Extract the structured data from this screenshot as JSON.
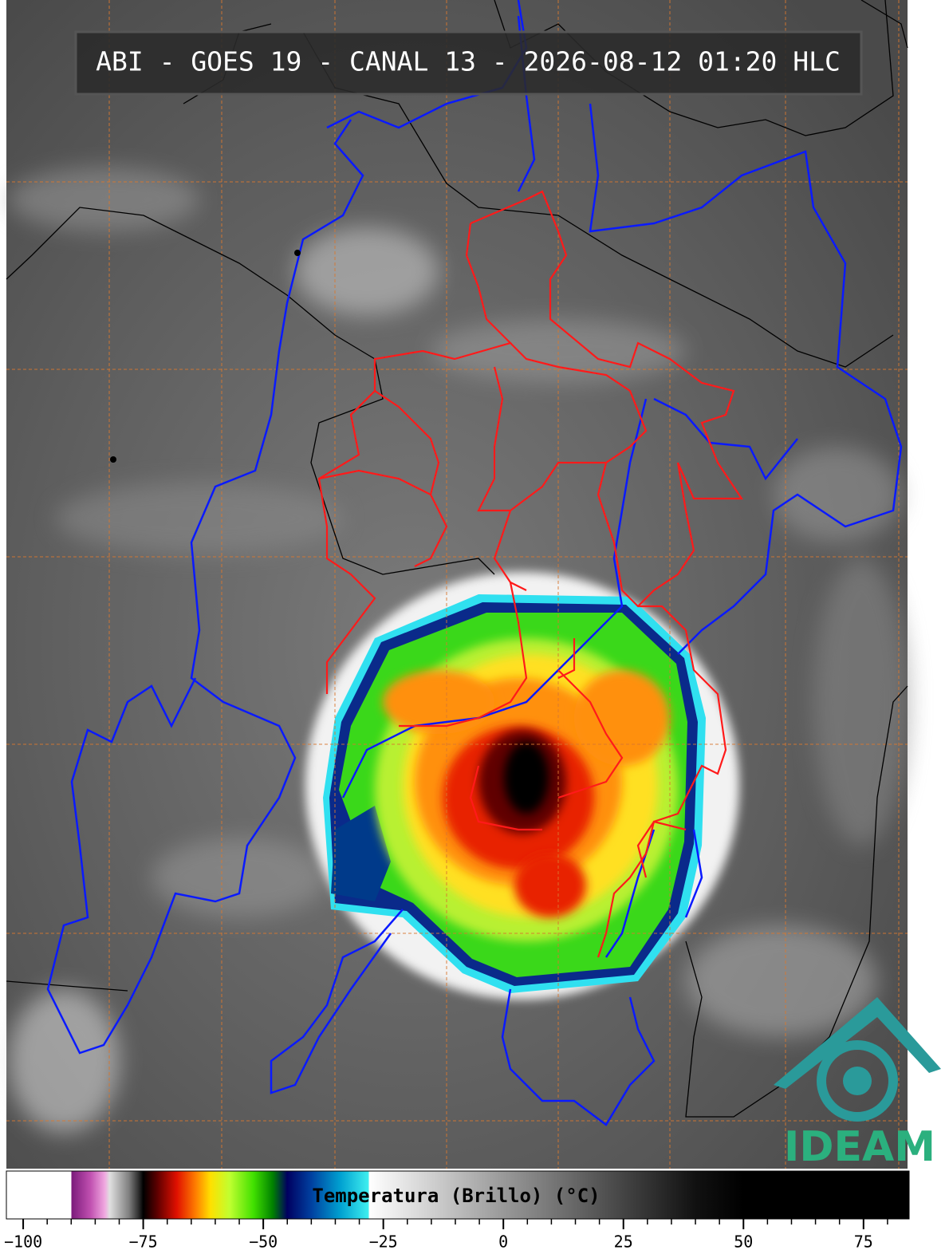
{
  "header": {
    "title": "ABI - GOES 19 - CANAL 13 - 2026-08-12 01:20 HLC"
  },
  "colorbar": {
    "label": "Temperatura (Brillo) (°C)",
    "range": [
      -103.5,
      84.5
    ],
    "ticks": [
      {
        "value": -100,
        "label": "−100"
      },
      {
        "value": -75,
        "label": "−75"
      },
      {
        "value": -50,
        "label": "−50"
      },
      {
        "value": -25,
        "label": "−25"
      },
      0,
      25,
      50,
      75
    ],
    "stops": [
      {
        "value": -103.5,
        "color": "#ffffff"
      },
      {
        "value": -90,
        "color": "#ffffff"
      },
      {
        "value": -90,
        "color": "#7a1a7a"
      },
      {
        "value": -86,
        "color": "#c050b0"
      },
      {
        "value": -83,
        "color": "#f0a8e0"
      },
      {
        "value": -82,
        "color": "#e0e0e0"
      },
      {
        "value": -78,
        "color": "#808080"
      },
      {
        "value": -76,
        "color": "#303030"
      },
      {
        "value": -75,
        "color": "#000000"
      },
      {
        "value": -72,
        "color": "#600000"
      },
      {
        "value": -68,
        "color": "#e01000"
      },
      {
        "value": -64,
        "color": "#ff8000"
      },
      {
        "value": -61,
        "color": "#ffe000"
      },
      {
        "value": -57,
        "color": "#c0ff30"
      },
      {
        "value": -52,
        "color": "#40e000"
      },
      {
        "value": -48,
        "color": "#008000"
      },
      {
        "value": -45,
        "color": "#000060"
      },
      {
        "value": -40,
        "color": "#0040a0"
      },
      {
        "value": -34,
        "color": "#00a0d0"
      },
      {
        "value": -28,
        "color": "#40f0f0"
      },
      {
        "value": -28,
        "color": "#ffffff"
      },
      {
        "value": 0,
        "color": "#999999"
      },
      {
        "value": 40,
        "color": "#111111"
      },
      {
        "value": 50,
        "color": "#000000"
      },
      {
        "value": 84.5,
        "color": "#000000"
      }
    ]
  },
  "logo": {
    "text": "IDEAM"
  }
}
